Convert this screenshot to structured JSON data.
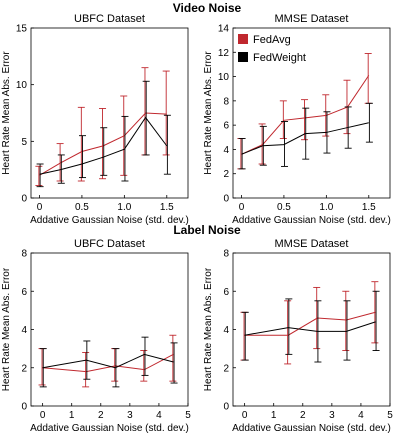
{
  "section_titles": {
    "top": "Video Noise",
    "bottom": "Label Noise"
  },
  "legend": {
    "entries": [
      {
        "name": "FedAvg",
        "color": "#c0282e"
      },
      {
        "name": "FedWeight",
        "color": "#000000"
      }
    ]
  },
  "chart_data": [
    {
      "type": "line",
      "title": "UBFC Dataset",
      "xlabel": "Addative Gaussian Noise (std. dev.)",
      "ylabel": "Heart Rate Mean Abs. Error",
      "xlim": [
        -0.1,
        1.75
      ],
      "ylim": [
        0,
        15
      ],
      "xticks": [
        0,
        0.5,
        1.0,
        1.5
      ],
      "xtick_labels": [
        "0",
        "0.5",
        "1.0",
        "1.5"
      ],
      "yticks": [
        0,
        5,
        10,
        15
      ],
      "ytick_labels": [
        "0",
        "5",
        "10",
        "15"
      ],
      "grid": false,
      "x": [
        0,
        0.25,
        0.5,
        0.75,
        1.0,
        1.25,
        1.5
      ],
      "series": [
        {
          "name": "FedAvg",
          "color": "#c0282e",
          "values": [
            2.0,
            3.1,
            4.1,
            4.6,
            5.5,
            7.5,
            7.4
          ],
          "err_low": [
            1.1,
            1.5,
            1.5,
            1.7,
            2.0,
            3.8,
            3.8
          ],
          "err_high": [
            2.8,
            4.8,
            8.0,
            7.9,
            9.0,
            11.5,
            11.2
          ]
        },
        {
          "name": "FedWeight",
          "color": "#000000",
          "values": [
            2.1,
            2.5,
            3.0,
            3.6,
            4.3,
            7.1,
            4.6
          ],
          "err_low": [
            1.0,
            1.3,
            1.8,
            2.0,
            1.5,
            3.8,
            2.1
          ],
          "err_high": [
            3.0,
            3.8,
            5.5,
            6.2,
            7.2,
            10.3,
            7.3
          ]
        }
      ]
    },
    {
      "type": "line",
      "title": "MMSE Dataset",
      "xlabel": "Addative Gaussian Noise (std. dev.)",
      "ylabel": "Heart Rate Mean Abs. Error",
      "xlim": [
        -0.1,
        1.75
      ],
      "ylim": [
        0,
        14
      ],
      "xticks": [
        0,
        0.5,
        1.0,
        1.5
      ],
      "xtick_labels": [
        "0",
        "0.5",
        "1.0",
        "1.5"
      ],
      "yticks": [
        0,
        2,
        4,
        6,
        8,
        10,
        12,
        14
      ],
      "ytick_labels": [
        "0",
        "2",
        "4",
        "6",
        "8",
        "10",
        "12",
        "14"
      ],
      "grid": false,
      "legend_position": "top-left",
      "x": [
        0,
        0.25,
        0.5,
        0.75,
        1.0,
        1.25,
        1.5
      ],
      "series": [
        {
          "name": "FedAvg",
          "color": "#c0282e",
          "values": [
            3.6,
            4.4,
            6.4,
            6.6,
            6.8,
            7.5,
            10.1
          ],
          "err_low": [
            2.4,
            2.8,
            4.9,
            4.8,
            5.1,
            5.3,
            7.8
          ],
          "err_high": [
            4.9,
            6.1,
            8.0,
            8.1,
            8.5,
            9.7,
            11.9
          ]
        },
        {
          "name": "FedWeight",
          "color": "#000000",
          "values": [
            3.6,
            4.3,
            4.4,
            5.3,
            5.4,
            5.8,
            6.2
          ],
          "err_low": [
            2.4,
            2.7,
            2.6,
            3.2,
            3.7,
            4.1,
            4.6
          ],
          "err_high": [
            4.9,
            5.9,
            6.3,
            7.4,
            7.1,
            7.5,
            7.8
          ]
        }
      ]
    },
    {
      "type": "line",
      "title": "UBFC Dataset",
      "xlabel": "Addative Gaussian Noise (std. dev.)",
      "ylabel": "Heart Rate Mean Abs. Error",
      "xlim": [
        -0.4,
        5
      ],
      "ylim": [
        0,
        8
      ],
      "xticks": [
        0,
        1,
        2,
        3,
        4,
        5
      ],
      "xtick_labels": [
        "0",
        "1",
        "2",
        "3",
        "4",
        "5"
      ],
      "yticks": [
        0,
        2,
        4,
        6,
        8
      ],
      "ytick_labels": [
        "0",
        "2",
        "4",
        "6",
        "8"
      ],
      "grid": false,
      "x": [
        0,
        1.5,
        2.5,
        3.5,
        4.5
      ],
      "series": [
        {
          "name": "FedAvg",
          "color": "#c0282e",
          "values": [
            2.0,
            1.8,
            2.1,
            1.9,
            2.7
          ],
          "err_low": [
            1.1,
            1.0,
            1.3,
            1.3,
            1.3
          ],
          "err_high": [
            3.0,
            2.8,
            3.0,
            2.9,
            3.7
          ]
        },
        {
          "name": "FedWeight",
          "color": "#000000",
          "values": [
            2.0,
            2.4,
            2.0,
            2.7,
            2.3
          ],
          "err_low": [
            1.0,
            1.4,
            1.0,
            1.6,
            1.2
          ],
          "err_high": [
            3.0,
            3.4,
            3.0,
            3.6,
            3.3
          ]
        }
      ]
    },
    {
      "type": "line",
      "title": "MMSE Dataset",
      "xlabel": "Addative Gaussian Noise (std. dev.)",
      "ylabel": "Heart Rate Mean Abs. Error",
      "xlim": [
        -0.4,
        5
      ],
      "ylim": [
        0,
        8
      ],
      "xticks": [
        0,
        1,
        2,
        3,
        4,
        5
      ],
      "xtick_labels": [
        "0",
        "1",
        "2",
        "3",
        "4",
        "5"
      ],
      "yticks": [
        0,
        2,
        4,
        6,
        8
      ],
      "ytick_labels": [
        "0",
        "2",
        "4",
        "6",
        "8"
      ],
      "grid": false,
      "x": [
        0,
        1.5,
        2.5,
        3.5,
        4.5
      ],
      "series": [
        {
          "name": "FedAvg",
          "color": "#c0282e",
          "values": [
            3.7,
            3.7,
            4.6,
            4.5,
            4.9
          ],
          "err_low": [
            2.4,
            2.2,
            3.0,
            2.9,
            3.3
          ],
          "err_high": [
            4.9,
            5.5,
            6.2,
            6.0,
            6.5
          ]
        },
        {
          "name": "FedWeight",
          "color": "#000000",
          "values": [
            3.7,
            4.1,
            3.9,
            3.9,
            4.4
          ],
          "err_low": [
            2.4,
            2.7,
            2.3,
            2.4,
            2.9
          ],
          "err_high": [
            4.9,
            5.6,
            5.5,
            5.5,
            6.0
          ]
        }
      ]
    }
  ]
}
